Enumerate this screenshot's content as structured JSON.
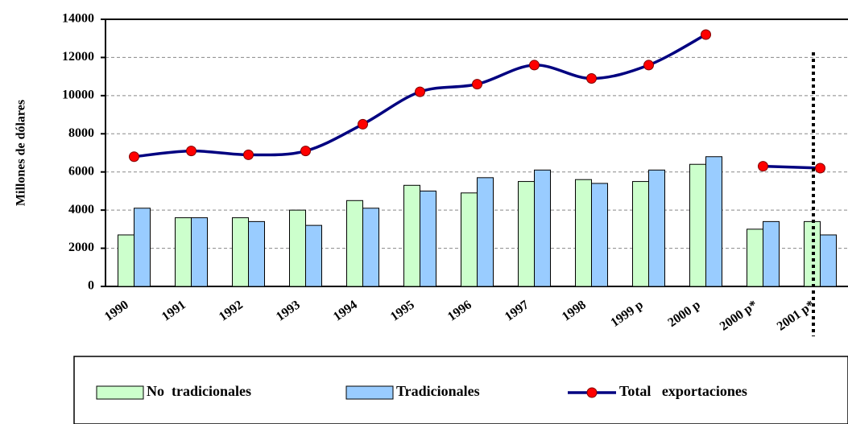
{
  "chart_data": {
    "type": "bar_line",
    "ylabel": "Millones de dólares",
    "categories": [
      "1990",
      "1991",
      "1992",
      "1993",
      "1994",
      "1995",
      "1996",
      "1997",
      "1998",
      "1999 p",
      "2000 p",
      "2000 p*",
      "2001 p*"
    ],
    "series": [
      {
        "name": "No  tradicionales",
        "type": "bar",
        "color": "#ccffcc",
        "values": [
          2700,
          3600,
          3600,
          4000,
          4500,
          5300,
          4900,
          5500,
          5600,
          5500,
          6400,
          3000,
          3400
        ]
      },
      {
        "name": "Tradicionales",
        "type": "bar",
        "color": "#99ccff",
        "values": [
          4100,
          3600,
          3400,
          3200,
          4100,
          5000,
          5700,
          6100,
          5400,
          6100,
          6800,
          3400,
          2700
        ]
      },
      {
        "name": "Total   exportaciones",
        "type": "line",
        "color": "#000080",
        "marker_color": "#ff0000",
        "values": [
          6800,
          7100,
          6900,
          7100,
          8500,
          10200,
          10600,
          11600,
          10900,
          11600,
          13200,
          6300,
          6200
        ],
        "line_breaks_before": [
          11
        ]
      }
    ],
    "ylim": [
      0,
      14000
    ],
    "yticks": [
      0,
      2000,
      4000,
      6000,
      8000,
      10000,
      12000,
      14000
    ],
    "grid": true,
    "legend": "bottom"
  }
}
